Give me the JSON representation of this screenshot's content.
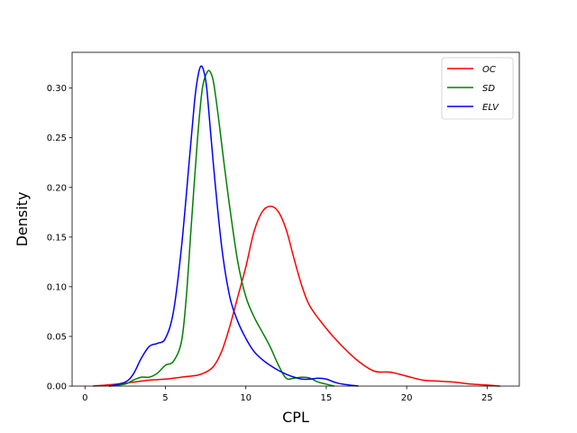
{
  "chart_data": {
    "type": "line",
    "title": "",
    "xlabel": "CPL",
    "ylabel": "Density",
    "xlim": [
      -0.8,
      27.0
    ],
    "ylim": [
      0.0,
      0.336
    ],
    "xticks": [
      0,
      5,
      10,
      15,
      20,
      25
    ],
    "yticks": [
      0.0,
      0.05,
      0.1,
      0.15,
      0.2,
      0.25,
      0.3
    ],
    "xtick_labels": [
      "0",
      "5",
      "10",
      "15",
      "20",
      "25"
    ],
    "ytick_labels": [
      "0.00",
      "0.05",
      "0.10",
      "0.15",
      "0.20",
      "0.25",
      "0.30"
    ],
    "grid": false,
    "legend_position": "top-right",
    "series": [
      {
        "name": "OC",
        "color": "#ff0000",
        "x": [
          0.5,
          2,
          3,
          4,
          5,
          6,
          7,
          7.5,
          8,
          8.5,
          9,
          9.5,
          10,
          10.5,
          11,
          11.5,
          12,
          12.5,
          13,
          13.5,
          14,
          15,
          16,
          17,
          18,
          19,
          20,
          21,
          22,
          23,
          24,
          25,
          25.8
        ],
        "y": [
          0.0,
          0.002,
          0.004,
          0.006,
          0.007,
          0.009,
          0.011,
          0.014,
          0.02,
          0.035,
          0.06,
          0.09,
          0.12,
          0.155,
          0.175,
          0.181,
          0.176,
          0.158,
          0.128,
          0.1,
          0.08,
          0.058,
          0.04,
          0.025,
          0.015,
          0.014,
          0.01,
          0.006,
          0.005,
          0.004,
          0.002,
          0.001,
          0.0
        ]
      },
      {
        "name": "SD",
        "color": "#008000",
        "x": [
          1.5,
          2.5,
          3,
          3.5,
          4,
          4.5,
          5,
          5.5,
          6,
          6.3,
          6.6,
          7,
          7.3,
          7.6,
          7.8,
          8,
          8.3,
          8.6,
          9,
          9.5,
          10,
          10.5,
          11,
          11.5,
          12,
          12.5,
          13,
          13.5,
          14,
          14.5,
          15.5
        ],
        "y": [
          0.0,
          0.002,
          0.006,
          0.009,
          0.009,
          0.013,
          0.021,
          0.025,
          0.045,
          0.09,
          0.16,
          0.25,
          0.3,
          0.316,
          0.316,
          0.305,
          0.27,
          0.23,
          0.18,
          0.125,
          0.09,
          0.07,
          0.055,
          0.04,
          0.022,
          0.008,
          0.008,
          0.009,
          0.008,
          0.004,
          0.0
        ]
      },
      {
        "name": "ELV",
        "color": "#0000ff",
        "x": [
          1.5,
          2.5,
          3,
          3.5,
          4,
          4.5,
          5,
          5.5,
          6,
          6.5,
          6.8,
          7,
          7.2,
          7.4,
          7.6,
          8,
          8.5,
          9,
          9.5,
          10,
          10.5,
          11,
          11.5,
          12,
          12.5,
          13,
          13.5,
          14,
          14.5,
          15,
          15.5,
          16,
          17
        ],
        "y": [
          0.0,
          0.004,
          0.012,
          0.028,
          0.04,
          0.043,
          0.048,
          0.075,
          0.14,
          0.23,
          0.285,
          0.31,
          0.322,
          0.316,
          0.295,
          0.22,
          0.14,
          0.09,
          0.065,
          0.048,
          0.035,
          0.027,
          0.021,
          0.016,
          0.012,
          0.009,
          0.007,
          0.007,
          0.008,
          0.007,
          0.004,
          0.002,
          0.0
        ]
      }
    ]
  }
}
